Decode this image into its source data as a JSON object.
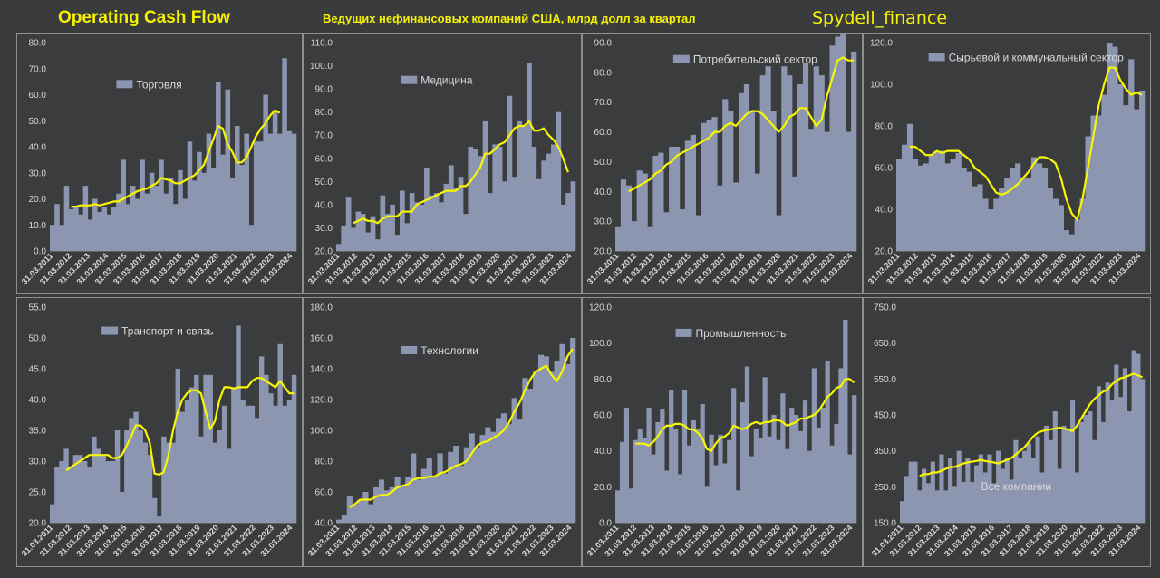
{
  "header": {
    "title": "Operating Cash Flow",
    "subtitle": "Ведущих нефинансовых компаний США, млрд долл за квартал",
    "brand": "Spydell_finance"
  },
  "colors": {
    "bar": "#8c96b1",
    "line": "#f7f700",
    "text": "#d9d9d9",
    "background": "#3b3c3e"
  },
  "x_tick_labels": [
    "31.03.2011",
    "31.03.2012",
    "31.03.2013",
    "31.03.2014",
    "31.03.2015",
    "31.03.2016",
    "31.03.2017",
    "31.03.2018",
    "31.03.2019",
    "31.03.2020",
    "31.03.2021",
    "31.03.2022",
    "31.03.2023",
    "31.03.2024"
  ],
  "chart_data": [
    {
      "type": "bar",
      "legend": "Торговля",
      "ylim": [
        0,
        80
      ],
      "yticks": [
        "0.0",
        "10.0",
        "20.0",
        "30.0",
        "40.0",
        "50.0",
        "60.0",
        "70.0",
        "80.0"
      ],
      "values": [
        10,
        18,
        10,
        25,
        16,
        17,
        14,
        25,
        12,
        20,
        15,
        17,
        14,
        17,
        22,
        35,
        18,
        25,
        20,
        35,
        22,
        30,
        25,
        35,
        22,
        28,
        18,
        31,
        20,
        42,
        27,
        38,
        30,
        45,
        32,
        65,
        37,
        62,
        28,
        48,
        33,
        45,
        10,
        42,
        42,
        60,
        45,
        54,
        45,
        74,
        46,
        45
      ],
      "moving_average": [
        null,
        null,
        null,
        null,
        17,
        17,
        17.5,
        17.5,
        17.5,
        18,
        17.5,
        18,
        18.5,
        19,
        19,
        20,
        21,
        22,
        23,
        23.5,
        24,
        25,
        26,
        28,
        27.5,
        27,
        26,
        26,
        27,
        28,
        29,
        31,
        33,
        38,
        43,
        48,
        47,
        41,
        38,
        34,
        34,
        36,
        40,
        44,
        47,
        49,
        52,
        54,
        53,
        null,
        null,
        null
      ]
    },
    {
      "type": "bar",
      "legend": "Медицина",
      "ylim": [
        20,
        110
      ],
      "yticks": [
        "20.0",
        "30.0",
        "40.0",
        "50.0",
        "60.0",
        "70.0",
        "80.0",
        "90.0",
        "100.0",
        "110.0"
      ],
      "values": [
        23,
        31,
        43,
        30,
        37,
        36,
        28,
        35,
        25,
        44,
        36,
        40,
        27,
        46,
        32,
        45,
        41,
        40,
        56,
        44,
        45,
        41,
        49,
        57,
        47,
        52,
        36,
        65,
        64,
        61,
        76,
        45,
        66,
        65,
        50,
        87,
        52,
        76,
        74,
        101,
        65,
        51,
        59,
        62,
        66,
        80,
        40,
        45,
        50
      ],
      "moving_average": [
        null,
        null,
        null,
        32,
        33,
        34,
        33,
        33,
        32,
        34,
        35,
        35,
        35,
        37,
        37,
        37,
        40,
        41,
        42,
        43,
        44,
        45,
        46,
        46,
        46,
        48,
        48,
        50,
        53,
        56,
        62,
        62,
        64,
        66,
        67,
        70,
        73,
        74,
        74,
        76,
        72,
        72,
        73,
        70,
        68,
        65,
        60,
        54,
        null
      ]
    },
    {
      "type": "bar",
      "legend": "Потребительский сектор",
      "ylim": [
        20,
        90
      ],
      "yticks": [
        "20.0",
        "30.0",
        "40.0",
        "50.0",
        "60.0",
        "70.0",
        "80.0",
        "90.0"
      ],
      "values": [
        28,
        44,
        42,
        30,
        47,
        46,
        28,
        52,
        53,
        33,
        55,
        55,
        34,
        57,
        59,
        32,
        63,
        64,
        65,
        42,
        71,
        67,
        43,
        73,
        76,
        67,
        46,
        79,
        82,
        67,
        32,
        82,
        79,
        45,
        76,
        83,
        61,
        82,
        79,
        60,
        89,
        92,
        95,
        60,
        87
      ],
      "moving_average": [
        null,
        null,
        40,
        41,
        42,
        43,
        44,
        46,
        47,
        49,
        50,
        52,
        53,
        54,
        55,
        56,
        57,
        58,
        60,
        60,
        62,
        63,
        62,
        64,
        66,
        67,
        67,
        66,
        64,
        62,
        60,
        62,
        65,
        66,
        68,
        68,
        65,
        62,
        64,
        72,
        78,
        84,
        85,
        84,
        84
      ],
      "moving_average_note": null
    },
    {
      "type": "bar",
      "legend": "Сырьевой и коммунальный сектор",
      "ylim": [
        20,
        120
      ],
      "yticks": [
        "20.0",
        "40.0",
        "60.0",
        "80.0",
        "100.0",
        "120.0"
      ],
      "values": [
        64,
        71,
        81,
        64,
        61,
        62,
        66,
        68,
        68,
        62,
        64,
        67,
        60,
        58,
        51,
        52,
        45,
        40,
        45,
        50,
        55,
        60,
        62,
        55,
        55,
        65,
        62,
        60,
        50,
        45,
        42,
        30,
        28,
        35,
        45,
        75,
        85,
        85,
        95,
        120,
        118,
        100,
        90,
        112,
        88,
        97
      ],
      "moving_average": [
        null,
        null,
        70,
        70,
        68,
        66,
        66,
        68,
        67,
        68,
        68,
        68,
        66,
        64,
        60,
        58,
        56,
        52,
        48,
        47,
        48,
        50,
        52,
        55,
        58,
        62,
        65,
        65,
        64,
        62,
        55,
        45,
        38,
        35,
        45,
        60,
        75,
        90,
        100,
        108,
        108,
        102,
        98,
        95,
        96,
        95
      ]
    },
    {
      "type": "bar",
      "legend": "Транспорт и связь",
      "ylim": [
        20,
        55
      ],
      "yticks": [
        "20.0",
        "25.0",
        "30.0",
        "35.0",
        "40.0",
        "45.0",
        "50.0",
        "55.0"
      ],
      "values": [
        23,
        29,
        30,
        32,
        29,
        31,
        31,
        30,
        29,
        34,
        32,
        31,
        30,
        30,
        35,
        25,
        35,
        37,
        38,
        35,
        33,
        31,
        24,
        21,
        34,
        33,
        33,
        45,
        38,
        40,
        42,
        44,
        34,
        44,
        44,
        33,
        35,
        39,
        32,
        42,
        52,
        40,
        39,
        39,
        37,
        47,
        44,
        41,
        39,
        49,
        39,
        40,
        44
      ],
      "moving_average": [
        null,
        null,
        null,
        28.5,
        29,
        29.5,
        30,
        30.5,
        31,
        31,
        31,
        31,
        31,
        30.5,
        30.5,
        31,
        32.5,
        34,
        35.8,
        35.8,
        35,
        33,
        28,
        27.8,
        28.2,
        31,
        35,
        38,
        40,
        41,
        41.5,
        41.5,
        41,
        38,
        35.2,
        36.5,
        40,
        42,
        42,
        41.8,
        42,
        42,
        42,
        43,
        43.5,
        43.5,
        43,
        42.5,
        42,
        43,
        42,
        41,
        41
      ]
    },
    {
      "type": "bar",
      "legend": "Технологии",
      "ylim": [
        40,
        180
      ],
      "yticks": [
        "40.0",
        "60.0",
        "80.0",
        "100.0",
        "120.0",
        "140.0",
        "160.0",
        "180.0"
      ],
      "values": [
        42,
        45,
        57,
        52,
        55,
        60,
        52,
        63,
        68,
        61,
        63,
        70,
        64,
        70,
        85,
        68,
        75,
        82,
        70,
        85,
        72,
        86,
        90,
        77,
        89,
        98,
        89,
        97,
        102,
        99,
        108,
        111,
        104,
        121,
        107,
        134,
        127,
        138,
        149,
        148,
        138,
        145,
        156,
        143,
        160
      ],
      "moving_average": [
        null,
        null,
        50,
        52,
        55,
        55,
        55,
        57,
        58,
        58,
        60,
        63,
        64,
        65,
        68,
        69,
        69,
        70,
        70,
        72,
        73,
        75,
        77,
        78,
        80,
        85,
        90,
        92,
        93,
        95,
        97,
        100,
        105,
        112,
        118,
        126,
        133,
        138,
        140,
        142,
        136,
        132,
        138,
        148,
        153
      ],
      "moving_average_note": null
    },
    {
      "type": "bar",
      "legend": "Промышленность",
      "ylim": [
        0,
        120
      ],
      "yticks": [
        "0.0",
        "20.0",
        "40.0",
        "60.0",
        "80.0",
        "100.0",
        "120.0"
      ],
      "values": [
        18,
        45,
        64,
        19,
        46,
        52,
        47,
        64,
        38,
        56,
        63,
        29,
        74,
        52,
        27,
        74,
        43,
        57,
        52,
        66,
        20,
        49,
        32,
        49,
        33,
        46,
        75,
        18,
        67,
        87,
        37,
        52,
        47,
        81,
        48,
        60,
        46,
        72,
        41,
        64,
        60,
        51,
        68,
        40,
        86,
        53,
        64,
        90,
        43,
        55,
        86,
        113,
        38,
        71
      ],
      "moving_average": [
        null,
        null,
        null,
        null,
        44,
        44,
        44,
        43,
        45,
        48,
        52,
        54,
        54,
        55,
        55,
        54,
        52,
        52,
        50,
        47,
        41,
        40,
        44,
        47,
        48,
        50,
        54,
        53,
        52,
        53,
        55,
        56,
        55,
        56,
        56,
        57,
        57,
        56,
        54,
        55,
        56,
        58,
        58,
        59,
        60,
        62,
        66,
        70,
        72,
        75,
        76,
        80,
        80,
        78
      ]
    },
    {
      "type": "bar",
      "legend": "Все компании",
      "ylim": [
        150,
        750
      ],
      "yticks": [
        "150.0",
        "250.0",
        "350.0",
        "450.0",
        "550.0",
        "650.0",
        "750.0"
      ],
      "values": [
        210,
        280,
        320,
        320,
        240,
        300,
        260,
        320,
        240,
        340,
        240,
        330,
        250,
        350,
        260,
        330,
        260,
        310,
        340,
        290,
        340,
        260,
        350,
        300,
        330,
        270,
        380,
        330,
        350,
        370,
        330,
        390,
        290,
        420,
        380,
        460,
        300,
        420,
        410,
        490,
        290,
        430,
        450,
        460,
        380,
        530,
        430,
        540,
        490,
        590,
        500,
        580,
        460,
        630,
        620,
        550
      ],
      "moving_average": [
        null,
        null,
        null,
        null,
        280,
        285,
        285,
        290,
        290,
        295,
        300,
        305,
        305,
        310,
        315,
        318,
        320,
        322,
        325,
        322,
        320,
        318,
        315,
        320,
        325,
        330,
        340,
        350,
        360,
        375,
        390,
        400,
        405,
        408,
        410,
        412,
        415,
        412,
        410,
        405,
        420,
        440,
        460,
        480,
        495,
        505,
        515,
        520,
        535,
        545,
        552,
        555,
        560,
        565,
        560,
        555
      ]
    }
  ]
}
